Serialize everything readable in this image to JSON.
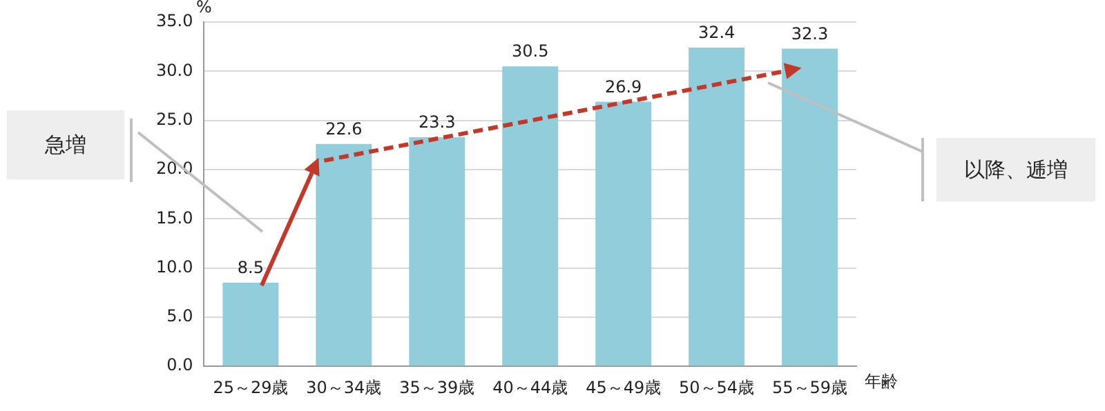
{
  "chart_data": {
    "type": "bar",
    "ylabel": "%",
    "xlabel": "年齢",
    "categories": [
      "25～29歳",
      "30～34歳",
      "35～39歳",
      "40～44歳",
      "45～49歳",
      "50～54歳",
      "55～59歳"
    ],
    "values": [
      8.5,
      22.6,
      23.3,
      30.5,
      26.9,
      32.4,
      32.3
    ],
    "color": "#92cddc",
    "data_labels": true,
    "ylim": [
      0,
      35
    ],
    "yticks": [
      {
        "value": 0,
        "label": "0.0"
      },
      {
        "value": 5,
        "label": "5.0"
      },
      {
        "value": 10,
        "label": "10.0"
      },
      {
        "value": 15,
        "label": "15.0"
      },
      {
        "value": 20,
        "label": "20.0"
      },
      {
        "value": 25,
        "label": "25.0"
      },
      {
        "value": 30,
        "label": "30.0"
      },
      {
        "value": 35,
        "label": "35.0"
      }
    ],
    "grid": "y",
    "annotations": [
      "急増",
      "以降、逓増"
    ]
  }
}
